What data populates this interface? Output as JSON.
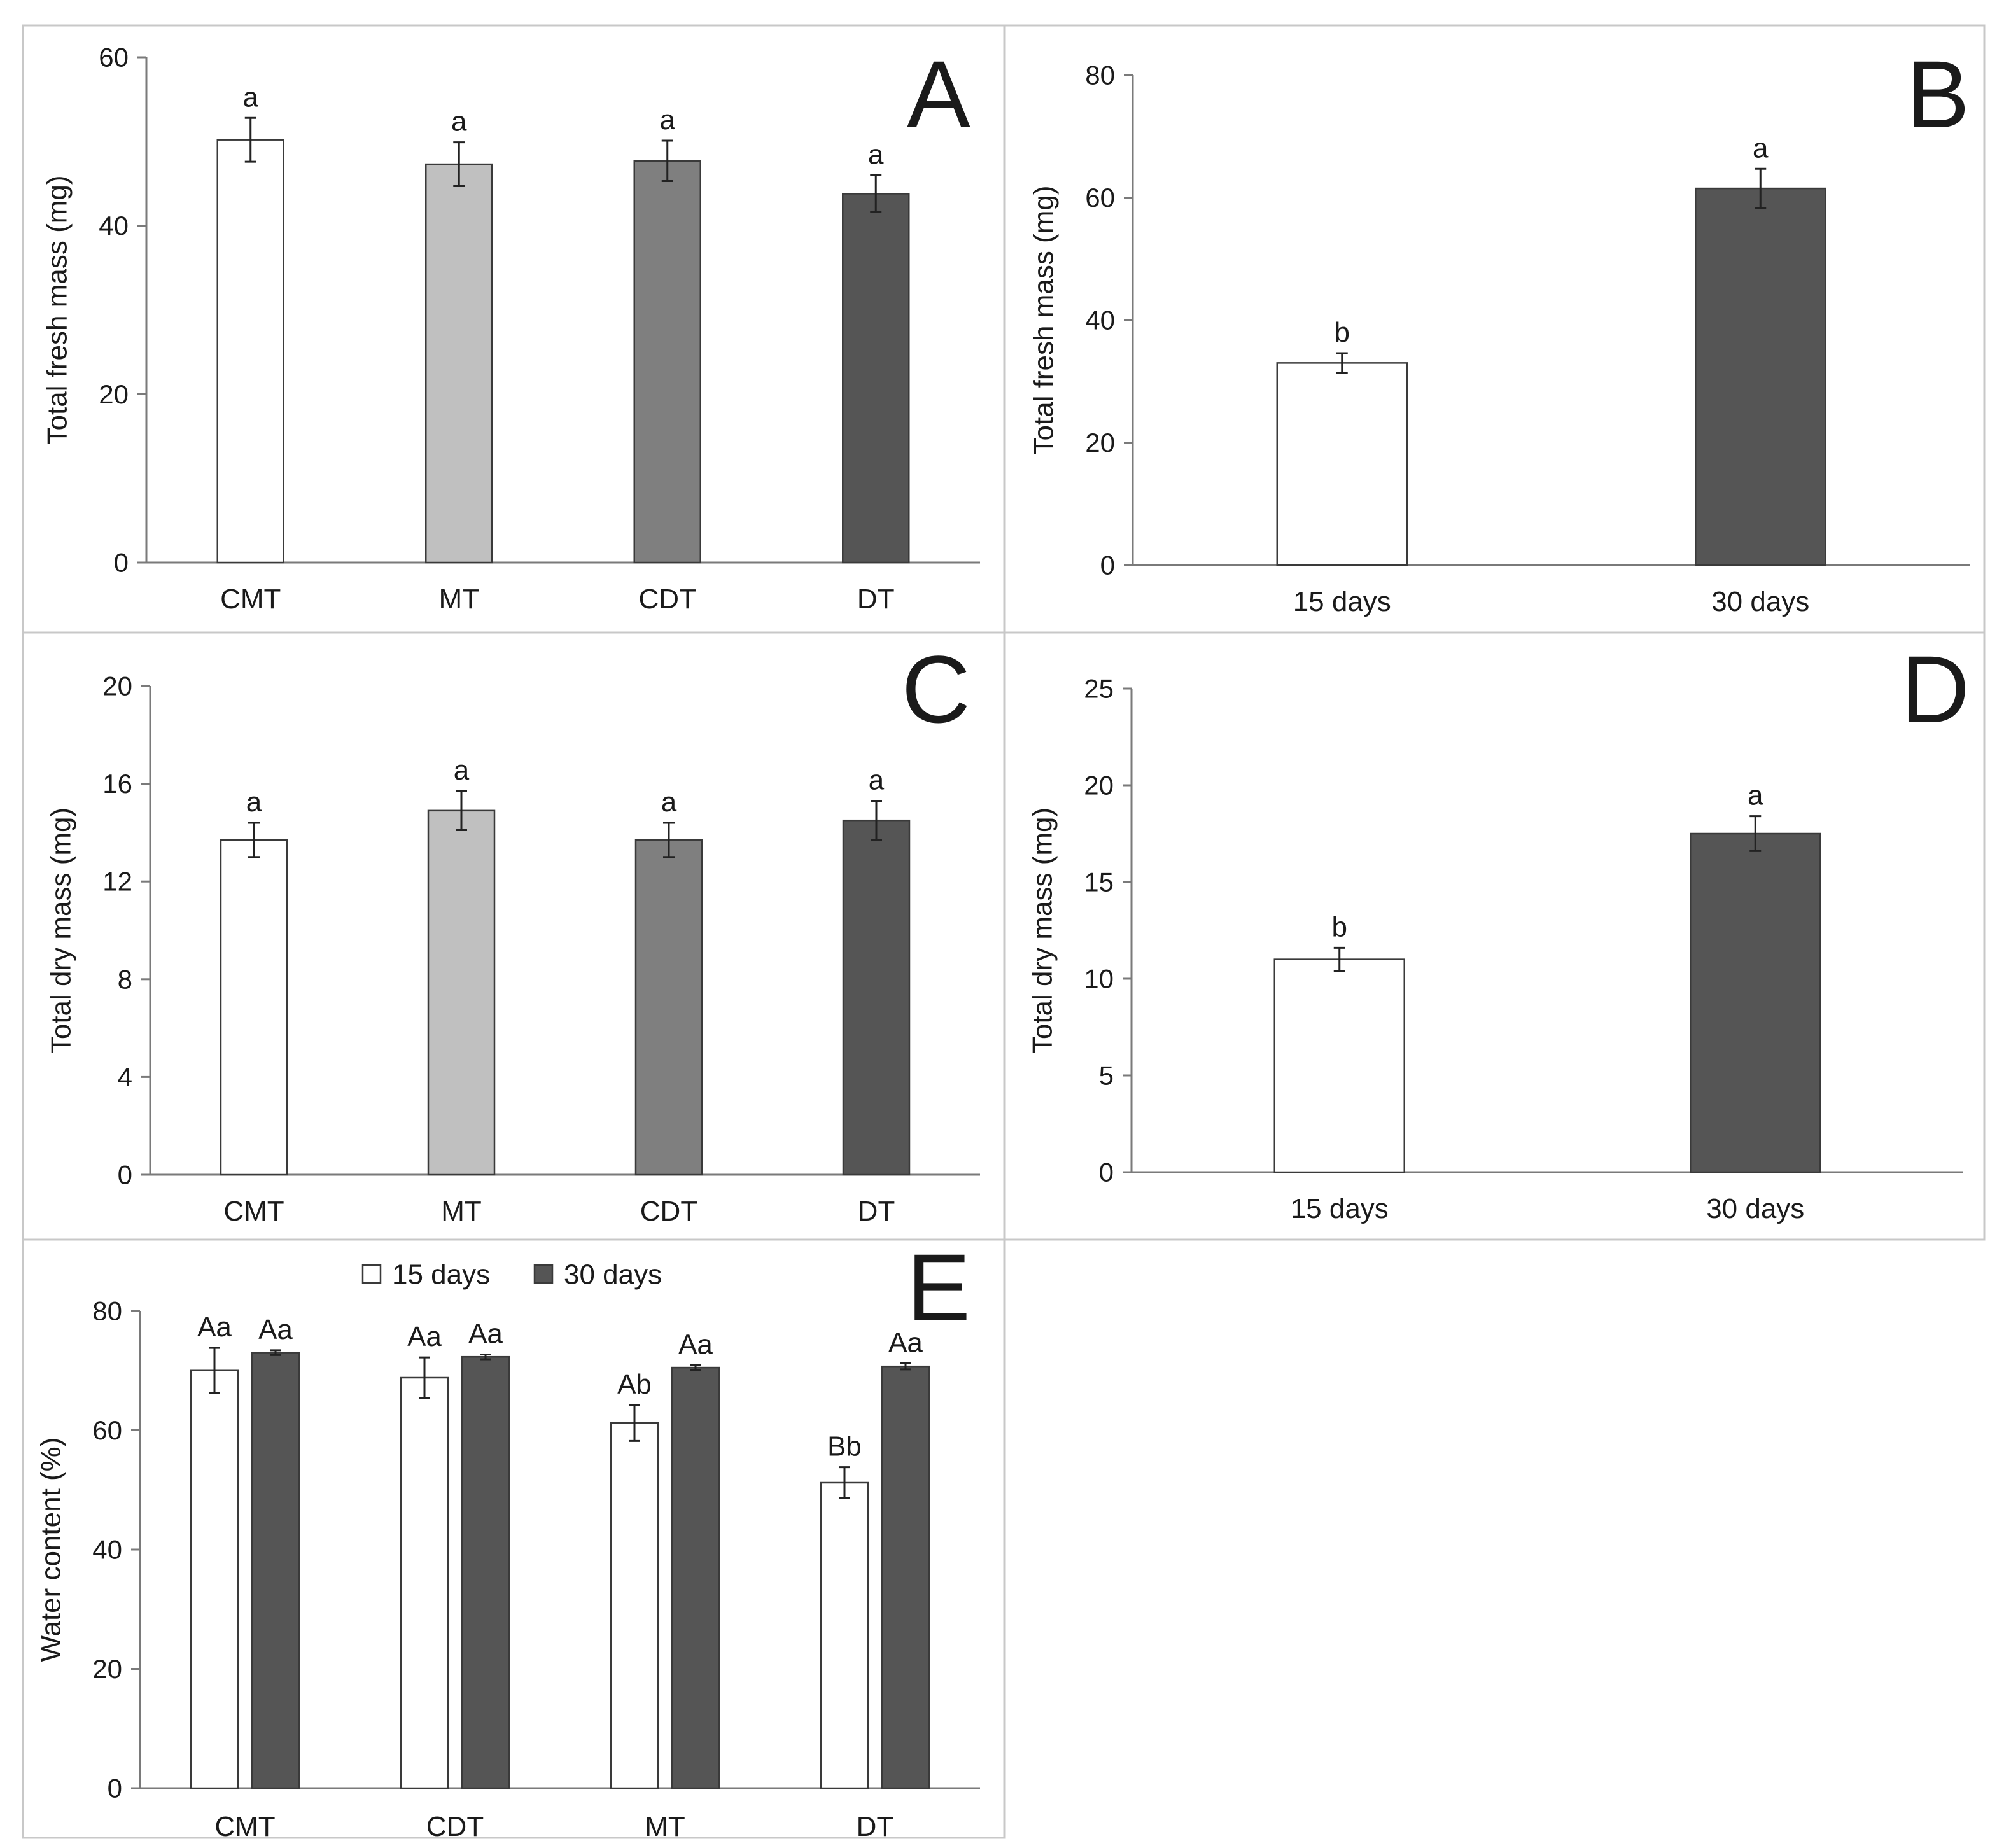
{
  "chart_data": [
    {
      "panel": "A",
      "type": "bar",
      "title": "",
      "xlabel": "",
      "ylabel": "Total fresh mass (mg)",
      "ylim": [
        0,
        60
      ],
      "yticks": [
        0,
        20,
        40,
        60
      ],
      "categories": [
        "CMT",
        "MT",
        "CDT",
        "DT"
      ],
      "values": [
        50.2,
        47.3,
        47.7,
        43.8
      ],
      "errors": [
        2.6,
        2.6,
        2.4,
        2.2
      ],
      "letters": [
        "a",
        "a",
        "a",
        "a"
      ],
      "colors": [
        "#ffffff",
        "#c0c0c0",
        "#7f7f7f",
        "#555555"
      ]
    },
    {
      "panel": "B",
      "type": "bar",
      "title": "",
      "xlabel": "",
      "ylabel": "Total fresh mass (mg)",
      "ylim": [
        0,
        80
      ],
      "yticks": [
        0,
        20,
        40,
        60,
        80
      ],
      "categories": [
        "15 days",
        "30 days"
      ],
      "values": [
        33.0,
        61.5
      ],
      "errors": [
        1.6,
        3.2
      ],
      "letters": [
        "b",
        "a"
      ],
      "colors": [
        "#ffffff",
        "#555555"
      ]
    },
    {
      "panel": "C",
      "type": "bar",
      "title": "",
      "xlabel": "",
      "ylabel": "Total dry mass (mg)",
      "ylim": [
        0,
        20
      ],
      "yticks": [
        0,
        4,
        8,
        12,
        16,
        20
      ],
      "categories": [
        "CMT",
        "MT",
        "CDT",
        "DT"
      ],
      "values": [
        13.7,
        14.9,
        13.7,
        14.5
      ],
      "errors": [
        0.7,
        0.8,
        0.7,
        0.8
      ],
      "letters": [
        "a",
        "a",
        "a",
        "a"
      ],
      "colors": [
        "#ffffff",
        "#c0c0c0",
        "#7f7f7f",
        "#555555"
      ]
    },
    {
      "panel": "D",
      "type": "bar",
      "title": "",
      "xlabel": "",
      "ylabel": "Total dry mass (mg)",
      "ylim": [
        0,
        25
      ],
      "yticks": [
        0,
        5,
        10,
        15,
        20,
        25
      ],
      "categories": [
        "15 days",
        "30 days"
      ],
      "values": [
        11.0,
        17.5
      ],
      "errors": [
        0.6,
        0.9
      ],
      "letters": [
        "b",
        "a"
      ],
      "colors": [
        "#ffffff",
        "#555555"
      ]
    },
    {
      "panel": "E",
      "type": "bar",
      "title": "",
      "xlabel": "",
      "ylabel": "Water content (%)",
      "ylim": [
        0,
        80
      ],
      "yticks": [
        0,
        20,
        40,
        60,
        80
      ],
      "categories": [
        "CMT",
        "CDT",
        "MT",
        "DT"
      ],
      "legend": {
        "placement": "top-center"
      },
      "series": [
        {
          "name": "15 days",
          "color": "#ffffff",
          "values": [
            70.0,
            68.8,
            61.2,
            51.2
          ],
          "errors": [
            3.8,
            3.4,
            3.0,
            2.6
          ],
          "letters": [
            "Aa",
            "Aa",
            "Ab",
            "Bb"
          ]
        },
        {
          "name": "30 days",
          "color": "#555555",
          "values": [
            73.0,
            72.3,
            70.5,
            70.7
          ],
          "errors": [
            0.4,
            0.4,
            0.4,
            0.5
          ],
          "letters": [
            "Aa",
            "Aa",
            "Aa",
            "Aa"
          ]
        }
      ]
    }
  ]
}
